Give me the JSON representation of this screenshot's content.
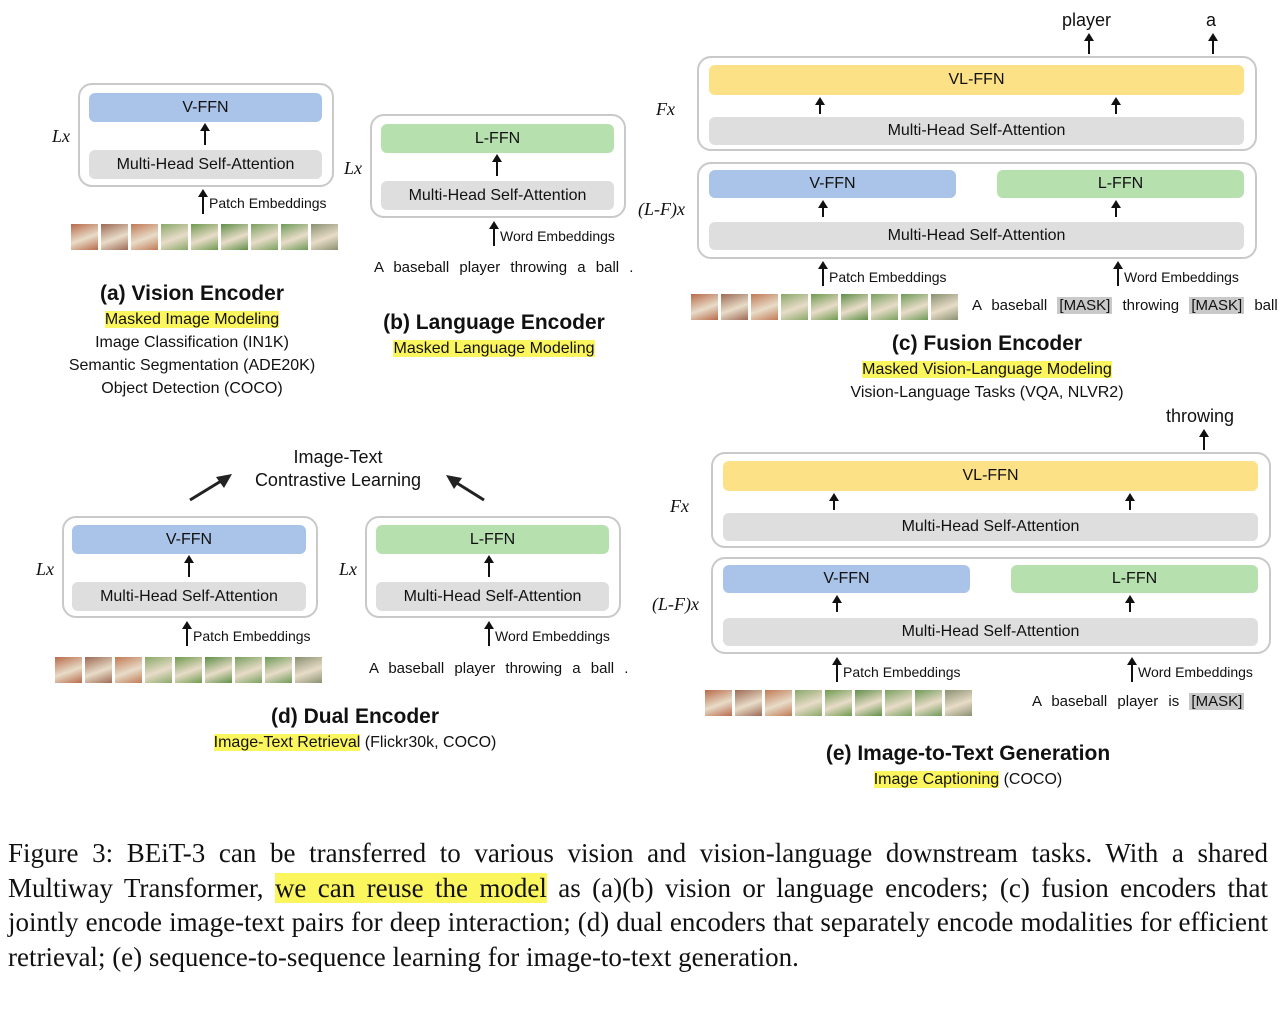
{
  "common": {
    "v_ffn": "V-FFN",
    "l_ffn": "L-FFN",
    "vl_ffn": "VL-FFN",
    "attention": "Multi-Head Self-Attention",
    "patch_embeddings": "Patch Embeddings",
    "word_embeddings": "Word Embeddings",
    "lx": "Lx",
    "fx": "Fx",
    "lfx": "(L-F)x"
  },
  "patch_colors": [
    "#b86a4a",
    "#9c6a55",
    "#c07a55",
    "#8aa86a",
    "#6f9a4f",
    "#5f8f48",
    "#7aa060",
    "#6e9a58",
    "#8a9070"
  ],
  "panel_a": {
    "title": "(a) Vision Encoder",
    "task_highlight": "Masked Image Modeling",
    "task2": "Image Classification (IN1K)",
    "task3": "Semantic Segmentation (ADE20K)",
    "task4": "Object Detection (COCO)"
  },
  "panel_b": {
    "title": "(b) Language Encoder",
    "task_highlight": "Masked Language Modeling",
    "sentence": "A baseball player throwing a ball ."
  },
  "panel_c": {
    "title": "(c) Fusion Encoder",
    "task_highlight": "Masked Vision-Language Modeling",
    "task2": "Vision-Language Tasks (VQA, NLVR2)",
    "out1": "player",
    "out2": "a",
    "sent_a": "A baseball",
    "mask": "[MASK]",
    "sent_b": "throwing",
    "sent_c": "ball ."
  },
  "panel_d": {
    "title": "(d) Dual Encoder",
    "task_highlight": "Image-Text Retrieval",
    "task_rest": " (Flickr30k, COCO)",
    "contrastive1": "Image-Text",
    "contrastive2": "Contrastive Learning",
    "sentence": "A baseball player throwing a ball ."
  },
  "panel_e": {
    "title": "(e) Image-to-Text Generation",
    "task_highlight": "Image Captioning",
    "task_rest": " (COCO)",
    "out": "throwing",
    "sentence": "A baseball player is",
    "mask": "[MASK]"
  },
  "caption": {
    "part1": "Figure 3:  BEiT-3 can be transferred to various vision and vision-language downstream tasks. With a shared Multiway Transformer, ",
    "highlight": "we can reuse the model",
    "part2": " as (a)(b) vision or language encoders; (c) fusion encoders that jointly encode image-text pairs for deep interaction; (d) dual encoders that separately encode modalities for efficient retrieval; (e) sequence-to-sequence learning for image-to-text generation."
  }
}
